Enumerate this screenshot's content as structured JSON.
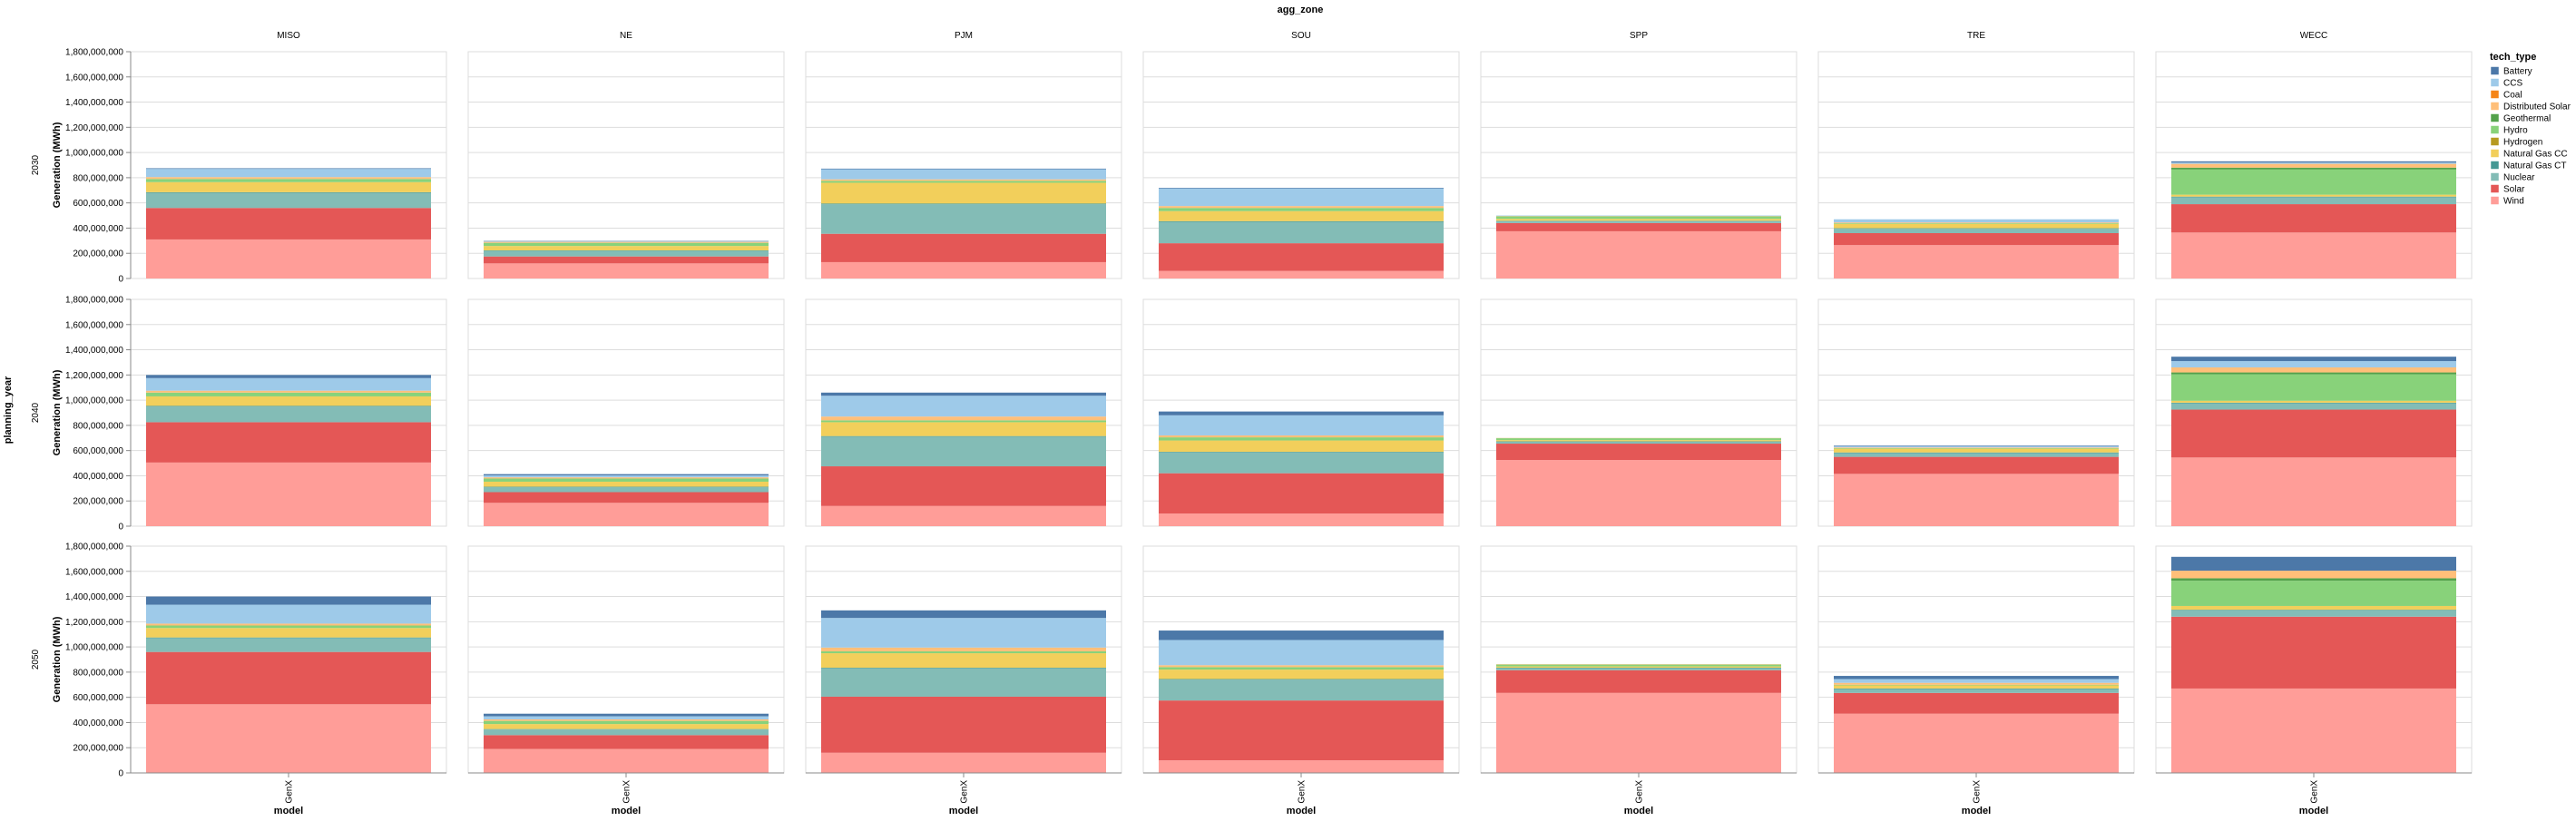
{
  "chart_data": {
    "type": "bar",
    "stacked": true,
    "facet_column_title": "agg_zone",
    "facet_row_title": "planning_year",
    "columns": [
      "MISO",
      "NE",
      "PJM",
      "SOU",
      "SPP",
      "TRE",
      "WECC"
    ],
    "rows": [
      "2030",
      "2040",
      "2050"
    ],
    "x_category": "GenX",
    "xlabel": "model",
    "ylabel": "Generation (MWh)",
    "ylim": [
      0,
      1800000000
    ],
    "yticks": [
      0,
      200000000,
      400000000,
      600000000,
      800000000,
      1000000000,
      1200000000,
      1400000000,
      1600000000,
      1800000000
    ],
    "ytick_labels": [
      "0",
      "200,000,000",
      "400,000,000",
      "600,000,000",
      "800,000,000",
      "1,000,000,000",
      "1,200,000,000",
      "1,400,000,000",
      "1,600,000,000",
      "1,800,000,000"
    ],
    "grid": true,
    "legend": {
      "title": "tech_type",
      "placement": "right",
      "entries": [
        {
          "name": "Battery",
          "color": "#4c78a8"
        },
        {
          "name": "CCS",
          "color": "#9ecae9"
        },
        {
          "name": "Coal",
          "color": "#f58518"
        },
        {
          "name": "Distributed Solar",
          "color": "#ffbf79"
        },
        {
          "name": "Geothermal",
          "color": "#54a24b"
        },
        {
          "name": "Hydro",
          "color": "#88d27a"
        },
        {
          "name": "Hydrogen",
          "color": "#b79a20"
        },
        {
          "name": "Natural Gas CC",
          "color": "#f2cf5b"
        },
        {
          "name": "Natural Gas CT",
          "color": "#439894"
        },
        {
          "name": "Nuclear",
          "color": "#83bcb6"
        },
        {
          "name": "Solar",
          "color": "#e45756"
        },
        {
          "name": "Wind",
          "color": "#ff9d98"
        }
      ]
    },
    "stack_order_bottom_to_top": [
      "Wind",
      "Solar",
      "Nuclear",
      "Natural Gas CT",
      "Natural Gas CC",
      "Hydrogen",
      "Hydro",
      "Geothermal",
      "Distributed Solar",
      "Coal",
      "CCS",
      "Battery"
    ],
    "series_by_panel": {
      "2030": {
        "MISO": {
          "Wind": 310000000,
          "Solar": 250000000,
          "Nuclear": 120000000,
          "Natural Gas CT": 5000000,
          "Natural Gas CC": 80000000,
          "Hydrogen": 0,
          "Hydro": 25000000,
          "Geothermal": 0,
          "Distributed Solar": 15000000,
          "Coal": 0,
          "CCS": 65000000,
          "Battery": 5000000
        },
        "NE": {
          "Wind": 120000000,
          "Solar": 55000000,
          "Nuclear": 45000000,
          "Natural Gas CT": 3000000,
          "Natural Gas CC": 35000000,
          "Hydrogen": 0,
          "Hydro": 25000000,
          "Geothermal": 0,
          "Distributed Solar": 8000000,
          "Coal": 0,
          "CCS": 4000000,
          "Battery": 3000000
        },
        "PJM": {
          "Wind": 130000000,
          "Solar": 225000000,
          "Nuclear": 235000000,
          "Natural Gas CT": 5000000,
          "Natural Gas CC": 165000000,
          "Hydrogen": 0,
          "Hydro": 15000000,
          "Geothermal": 0,
          "Distributed Solar": 12000000,
          "Coal": 0,
          "CCS": 80000000,
          "Battery": 5000000
        },
        "SOU": {
          "Wind": 60000000,
          "Solar": 220000000,
          "Nuclear": 170000000,
          "Natural Gas CT": 5000000,
          "Natural Gas CC": 80000000,
          "Hydrogen": 0,
          "Hydro": 25000000,
          "Geothermal": 0,
          "Distributed Solar": 15000000,
          "Coal": 0,
          "CCS": 140000000,
          "Battery": 5000000
        },
        "SPP": {
          "Wind": 375000000,
          "Solar": 65000000,
          "Nuclear": 15000000,
          "Natural Gas CT": 3000000,
          "Natural Gas CC": 15000000,
          "Hydrogen": 0,
          "Hydro": 20000000,
          "Geothermal": 0,
          "Distributed Solar": 3000000,
          "Coal": 0,
          "CCS": 4000000,
          "Battery": 0
        },
        "TRE": {
          "Wind": 265000000,
          "Solar": 95000000,
          "Nuclear": 35000000,
          "Natural Gas CT": 4000000,
          "Natural Gas CC": 35000000,
          "Hydrogen": 0,
          "Hydro": 5000000,
          "Geothermal": 0,
          "Distributed Solar": 6000000,
          "Coal": 0,
          "CCS": 25000000,
          "Battery": 0
        },
        "WECC": {
          "Wind": 365000000,
          "Solar": 225000000,
          "Nuclear": 55000000,
          "Natural Gas CT": 5000000,
          "Natural Gas CC": 15000000,
          "Hydrogen": 0,
          "Hydro": 200000000,
          "Geothermal": 15000000,
          "Distributed Solar": 30000000,
          "Coal": 0,
          "CCS": 10000000,
          "Battery": 10000000
        }
      },
      "2040": {
        "MISO": {
          "Wind": 505000000,
          "Solar": 320000000,
          "Nuclear": 125000000,
          "Natural Gas CT": 5000000,
          "Natural Gas CC": 75000000,
          "Hydrogen": 0,
          "Hydro": 30000000,
          "Geothermal": 0,
          "Distributed Solar": 15000000,
          "Coal": 0,
          "CCS": 100000000,
          "Battery": 25000000
        },
        "NE": {
          "Wind": 185000000,
          "Solar": 85000000,
          "Nuclear": 40000000,
          "Natural Gas CT": 3000000,
          "Natural Gas CC": 40000000,
          "Hydrogen": 0,
          "Hydro": 25000000,
          "Geothermal": 0,
          "Distributed Solar": 10000000,
          "Coal": 0,
          "CCS": 15000000,
          "Battery": 10000000
        },
        "PJM": {
          "Wind": 160000000,
          "Solar": 315000000,
          "Nuclear": 235000000,
          "Natural Gas CT": 5000000,
          "Natural Gas CC": 110000000,
          "Hydrogen": 0,
          "Hydro": 15000000,
          "Geothermal": 0,
          "Distributed Solar": 30000000,
          "Coal": 0,
          "CCS": 165000000,
          "Battery": 25000000
        },
        "SOU": {
          "Wind": 100000000,
          "Solar": 320000000,
          "Nuclear": 165000000,
          "Natural Gas CT": 5000000,
          "Natural Gas CC": 90000000,
          "Hydrogen": 0,
          "Hydro": 25000000,
          "Geothermal": 0,
          "Distributed Solar": 15000000,
          "Coal": 0,
          "CCS": 160000000,
          "Battery": 30000000
        },
        "SPP": {
          "Wind": 525000000,
          "Solar": 130000000,
          "Nuclear": 15000000,
          "Natural Gas CT": 3000000,
          "Natural Gas CC": 10000000,
          "Hydrogen": 0,
          "Hydro": 15000000,
          "Geothermal": 0,
          "Distributed Solar": 2000000,
          "Coal": 0,
          "CCS": 0,
          "Battery": 0
        },
        "TRE": {
          "Wind": 415000000,
          "Solar": 135000000,
          "Nuclear": 30000000,
          "Natural Gas CT": 5000000,
          "Natural Gas CC": 30000000,
          "Hydrogen": 0,
          "Hydro": 5000000,
          "Geothermal": 0,
          "Distributed Solar": 5000000,
          "Coal": 0,
          "CCS": 10000000,
          "Battery": 5000000
        },
        "WECC": {
          "Wind": 545000000,
          "Solar": 380000000,
          "Nuclear": 50000000,
          "Natural Gas CT": 5000000,
          "Natural Gas CC": 15000000,
          "Hydrogen": 0,
          "Hydro": 210000000,
          "Geothermal": 15000000,
          "Distributed Solar": 40000000,
          "Coal": 0,
          "CCS": 50000000,
          "Battery": 35000000
        }
      },
      "2050": {
        "MISO": {
          "Wind": 545000000,
          "Solar": 415000000,
          "Nuclear": 110000000,
          "Natural Gas CT": 5000000,
          "Natural Gas CC": 75000000,
          "Hydrogen": 0,
          "Hydro": 20000000,
          "Geothermal": 0,
          "Distributed Solar": 15000000,
          "Coal": 0,
          "CCS": 150000000,
          "Battery": 65000000
        },
        "NE": {
          "Wind": 190000000,
          "Solar": 110000000,
          "Nuclear": 45000000,
          "Natural Gas CT": 3000000,
          "Natural Gas CC": 40000000,
          "Hydrogen": 0,
          "Hydro": 25000000,
          "Geothermal": 0,
          "Distributed Solar": 12000000,
          "Coal": 0,
          "CCS": 25000000,
          "Battery": 20000000
        },
        "PJM": {
          "Wind": 160000000,
          "Solar": 445000000,
          "Nuclear": 225000000,
          "Natural Gas CT": 5000000,
          "Natural Gas CC": 115000000,
          "Hydrogen": 0,
          "Hydro": 15000000,
          "Geothermal": 0,
          "Distributed Solar": 30000000,
          "Coal": 0,
          "CCS": 235000000,
          "Battery": 60000000
        },
        "SOU": {
          "Wind": 100000000,
          "Solar": 475000000,
          "Nuclear": 165000000,
          "Natural Gas CT": 5000000,
          "Natural Gas CC": 75000000,
          "Hydrogen": 0,
          "Hydro": 20000000,
          "Geothermal": 0,
          "Distributed Solar": 15000000,
          "Coal": 0,
          "CCS": 200000000,
          "Battery": 75000000
        },
        "SPP": {
          "Wind": 635000000,
          "Solar": 180000000,
          "Nuclear": 15000000,
          "Natural Gas CT": 5000000,
          "Natural Gas CC": 10000000,
          "Hydrogen": 0,
          "Hydro": 15000000,
          "Geothermal": 0,
          "Distributed Solar": 3000000,
          "Coal": 0,
          "CCS": 0,
          "Battery": 0
        },
        "TRE": {
          "Wind": 470000000,
          "Solar": 165000000,
          "Nuclear": 30000000,
          "Natural Gas CT": 5000000,
          "Natural Gas CC": 25000000,
          "Hydrogen": 0,
          "Hydro": 5000000,
          "Geothermal": 0,
          "Distributed Solar": 15000000,
          "Coal": 0,
          "CCS": 30000000,
          "Battery": 25000000
        },
        "WECC": {
          "Wind": 670000000,
          "Solar": 570000000,
          "Nuclear": 50000000,
          "Natural Gas CT": 5000000,
          "Natural Gas CC": 30000000,
          "Hydrogen": 0,
          "Hydro": 200000000,
          "Geothermal": 20000000,
          "Distributed Solar": 60000000,
          "Coal": 0,
          "CCS": 0,
          "Battery": 110000000
        }
      }
    }
  }
}
